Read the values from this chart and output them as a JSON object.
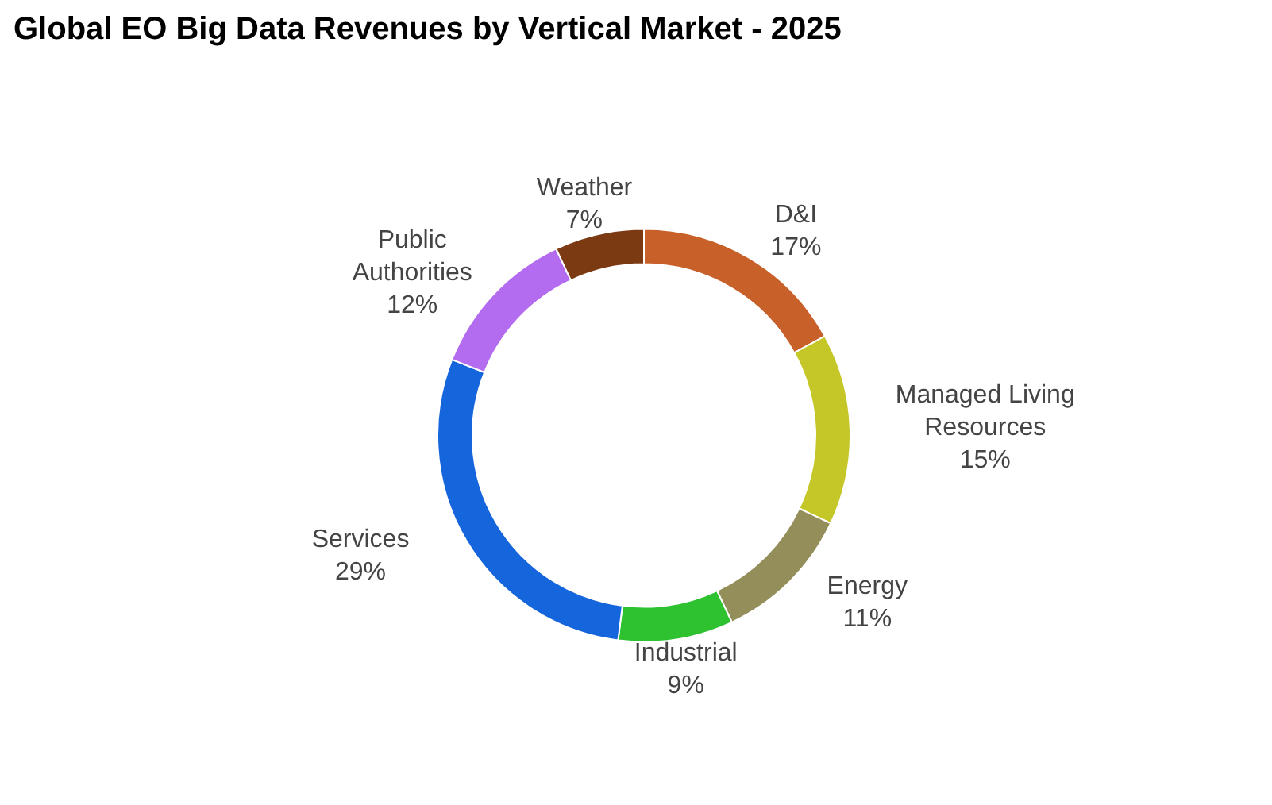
{
  "chart_data": {
    "type": "donut",
    "title": "Global EO Big Data Revenues by Vertical Market - 2025",
    "categories": [
      "D&I",
      "Managed Living Resources",
      "Energy",
      "Industrial",
      "Services",
      "Public Authorities",
      "Weather"
    ],
    "values": [
      17,
      15,
      11,
      9,
      29,
      12,
      7
    ],
    "value_labels": [
      "17%",
      "15%",
      "11%",
      "9%",
      "29%",
      "12%",
      "7%"
    ],
    "colors": [
      "#c8602a",
      "#c5c627",
      "#948f5a",
      "#2ec231",
      "#1565dc",
      "#b36bf0",
      "#7b3a12"
    ]
  }
}
